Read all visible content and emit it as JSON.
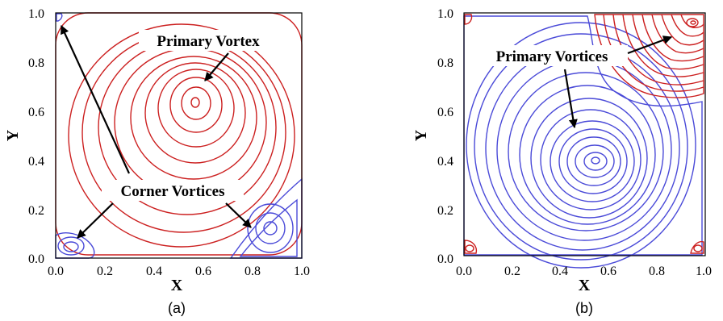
{
  "panels": [
    {
      "id": "a",
      "caption": "(a)",
      "xlabel": "X",
      "ylabel": "Y",
      "xticks": [
        "0.0",
        "0.2",
        "0.4",
        "0.6",
        "0.8",
        "1.0"
      ],
      "yticks": [
        "0.0",
        "0.2",
        "0.4",
        "0.6",
        "0.8",
        "1.0"
      ],
      "annotations": [
        "Primary Vortex",
        "Corner Vortices"
      ]
    },
    {
      "id": "b",
      "caption": "(b)",
      "xlabel": "X",
      "ylabel": "Y",
      "xticks": [
        "0.0",
        "0.2",
        "0.4",
        "0.6",
        "0.8",
        "1.0"
      ],
      "yticks": [
        "0.0",
        "0.2",
        "0.4",
        "0.6",
        "0.8",
        "1.0"
      ],
      "annotations": [
        "Primary Vortices"
      ]
    }
  ],
  "colors": {
    "positive_streamline": "#cc2020",
    "negative_streamline": "#4a4ad8"
  }
}
